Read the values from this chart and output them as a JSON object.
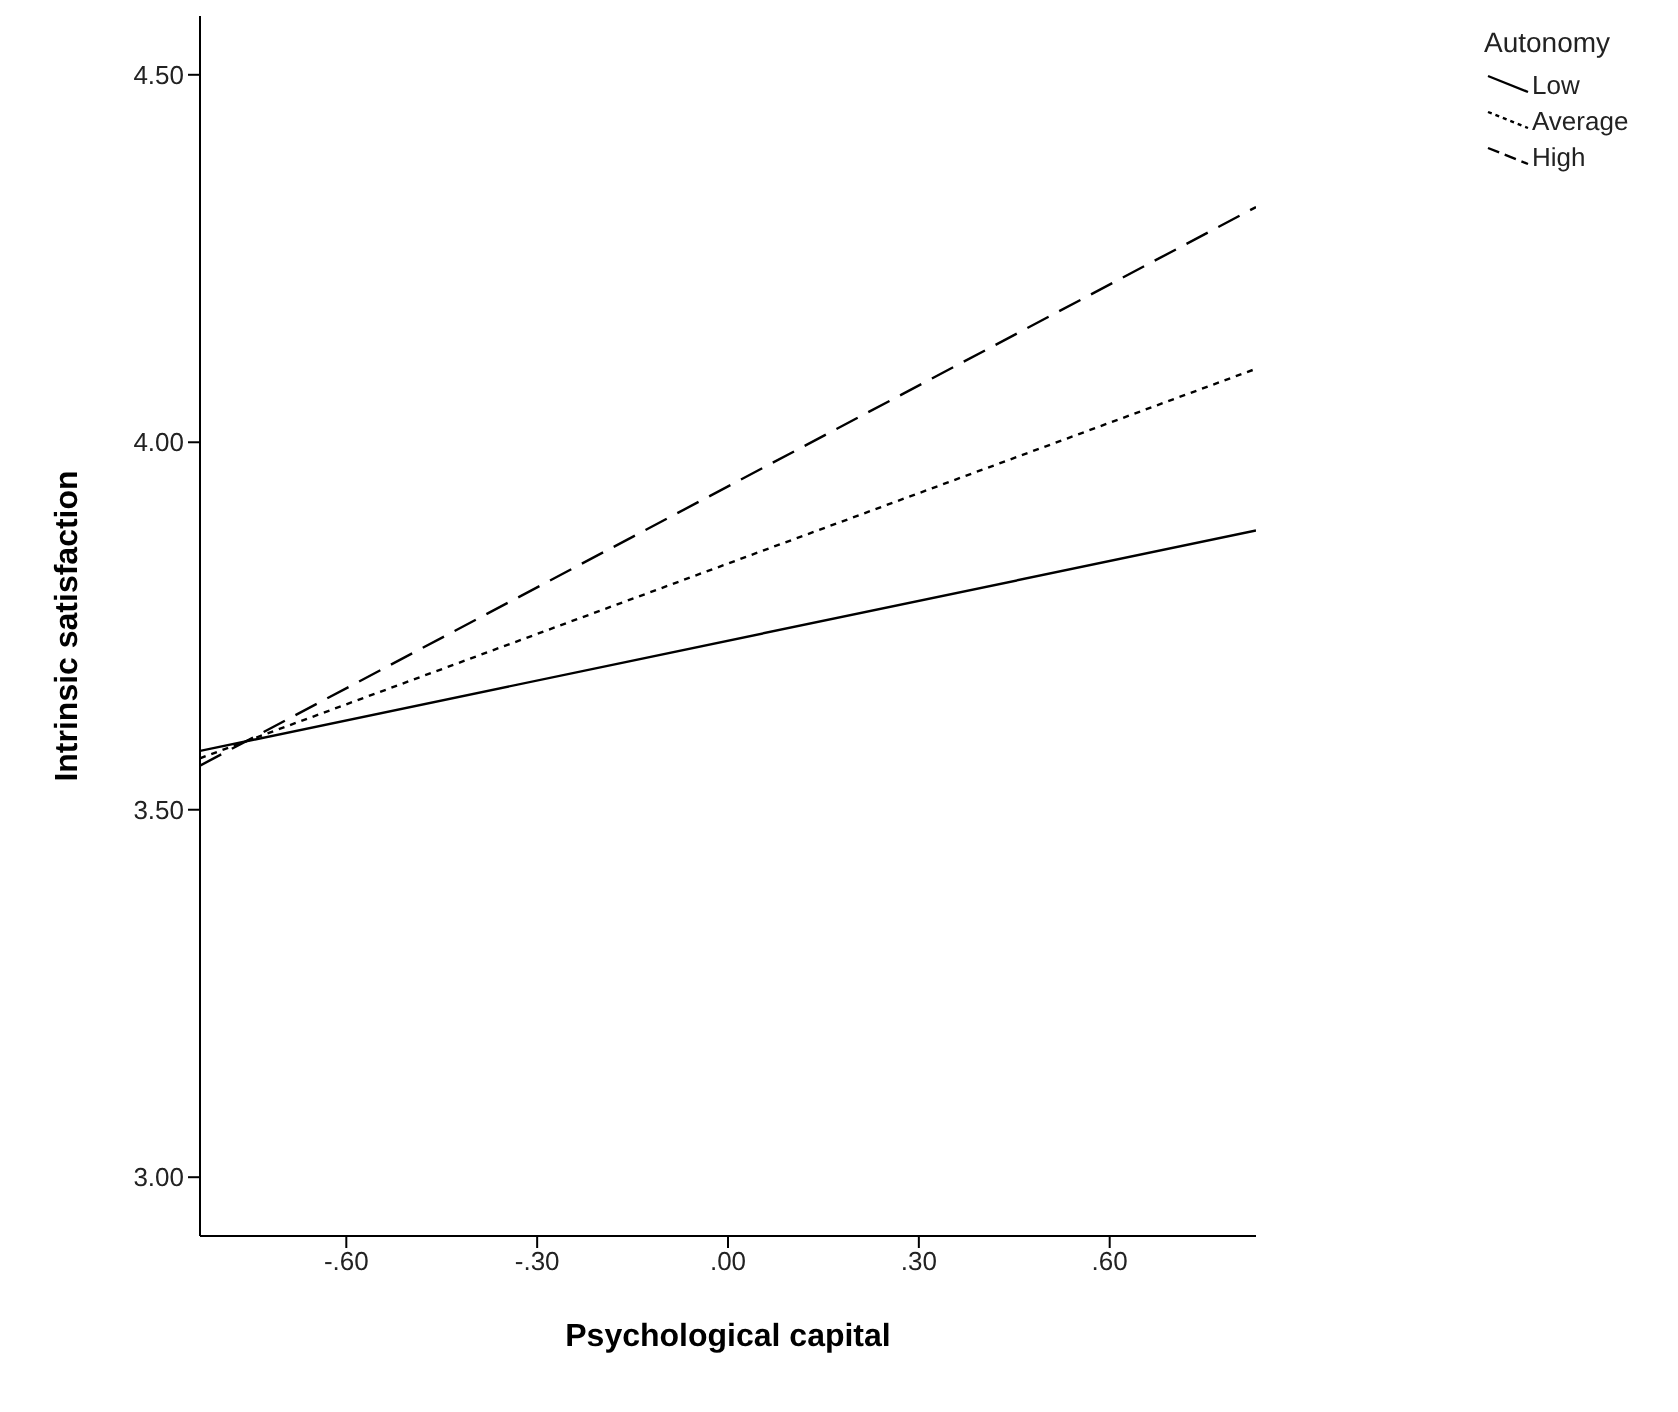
{
  "chart_data": {
    "type": "line",
    "xlabel": "Psychological capital",
    "ylabel": "Intrinsic satisfaction",
    "legend_title": "Autonomy",
    "x": [
      -0.83,
      0.83
    ],
    "series": [
      {
        "name": "Low",
        "color": "#000000",
        "line_style": "solid",
        "values": [
          3.58,
          3.88
        ]
      },
      {
        "name": "Average",
        "color": "#000000",
        "line_style": "dotted",
        "values": [
          3.57,
          4.1
        ]
      },
      {
        "name": "High",
        "color": "#000000",
        "line_style": "dashed",
        "values": [
          3.56,
          4.32
        ]
      }
    ],
    "xlim": [
      -0.83,
      0.83
    ],
    "xticks": [
      {
        "value": -0.6,
        "label": "-.60"
      },
      {
        "value": -0.3,
        "label": "-.30"
      },
      {
        "value": 0,
        "label": ".00"
      },
      {
        "value": 0.3,
        "label": ".30"
      },
      {
        "value": 0.6,
        "label": ".60"
      }
    ],
    "ylim": [
      2.92,
      4.58
    ],
    "yticks": [
      {
        "value": 3,
        "label": "3.00"
      },
      {
        "value": 3.5,
        "label": "3.50"
      },
      {
        "value": 4,
        "label": "4.00"
      },
      {
        "value": 4.5,
        "label": "4.50"
      }
    ],
    "grid": false,
    "legend": "top right",
    "marker": "none"
  }
}
